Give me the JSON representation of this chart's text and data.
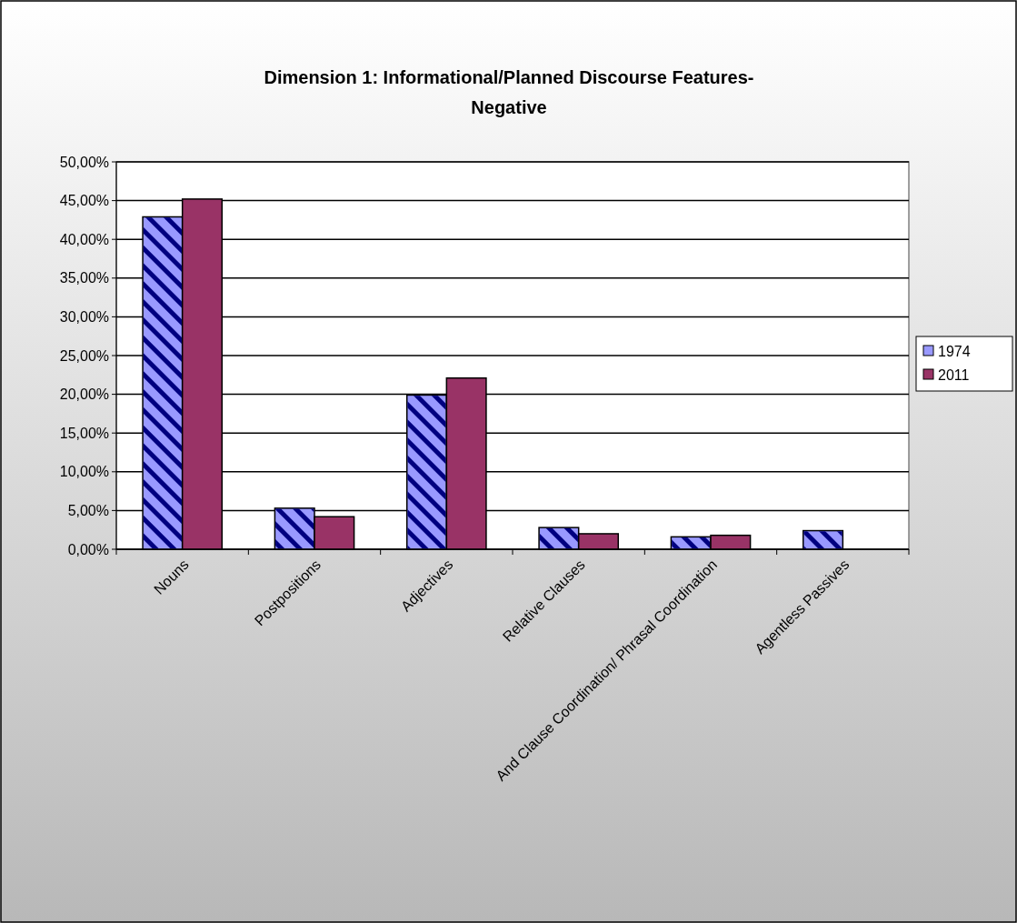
{
  "chart_data": {
    "type": "bar",
    "title": "Dimension 1: Informational/Planned Discourse Features-\nNegative",
    "categories": [
      "Nouns",
      "Postpositions",
      "Adjectives",
      "Relative Clauses",
      "And Clause Coordination/ Phrasal Coordination",
      "Agentless Passives"
    ],
    "series": [
      {
        "name": "1974",
        "color": "#9999ff",
        "values": [
          42.9,
          5.3,
          19.9,
          2.8,
          1.6,
          2.4
        ]
      },
      {
        "name": "2011",
        "color": "#993366",
        "values": [
          45.2,
          4.2,
          22.1,
          2.0,
          1.8,
          null
        ]
      }
    ],
    "ylim": [
      0,
      50
    ],
    "yticks": [
      {
        "value": 0,
        "label": "0,00%"
      },
      {
        "value": 5,
        "label": "5,00%"
      },
      {
        "value": 10,
        "label": "10,00%"
      },
      {
        "value": 15,
        "label": "15,00%"
      },
      {
        "value": 20,
        "label": "20,00%"
      },
      {
        "value": 25,
        "label": "25,00%"
      },
      {
        "value": 30,
        "label": "30,00%"
      },
      {
        "value": 35,
        "label": "35,00%"
      },
      {
        "value": 40,
        "label": "40,00%"
      },
      {
        "value": 45,
        "label": "45,00%"
      },
      {
        "value": 50,
        "label": "50,00%"
      }
    ],
    "grid": "y",
    "legend": "right"
  }
}
